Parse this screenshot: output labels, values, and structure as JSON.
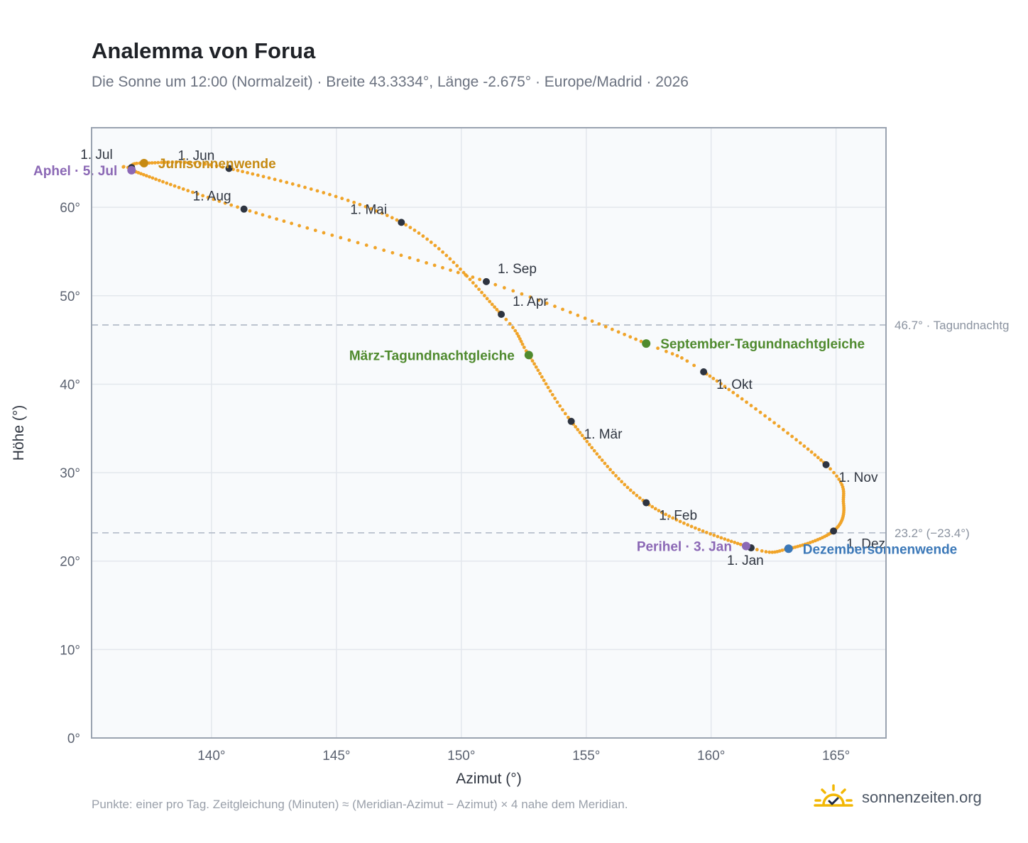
{
  "header": {
    "title": "Analemma von Forua",
    "subtitle": "Die Sonne um 12:00 (Normalzeit) · Breite 43.3334°, Länge -2.675° · Europe/Madrid · 2026"
  },
  "footer": {
    "note": "Punkte: einer pro Tag. Zeitgleichung (Minuten) ≈ (Meridian-Azimut − Azimut) × 4 nahe dem Meridian.",
    "brand": "sonnenzeiten.org",
    "brand_icon": "sun-check-icon"
  },
  "chart_data": {
    "type": "scatter",
    "title": "Analemma von Forua",
    "xlabel": "Azimut (°)",
    "ylabel": "Höhe (°)",
    "xlim": [
      135.2,
      167.0
    ],
    "ylim": [
      0,
      69
    ],
    "xticks": [
      140,
      145,
      150,
      155,
      160,
      165
    ],
    "xtick_labels": [
      "140°",
      "145°",
      "150°",
      "155°",
      "160°",
      "165°"
    ],
    "yticks": [
      0,
      10,
      20,
      30,
      40,
      50,
      60
    ],
    "ytick_labels": [
      "0°",
      "10°",
      "20°",
      "30°",
      "40°",
      "50°",
      "60°"
    ],
    "grid": true,
    "colors": {
      "curve": "#f0a429",
      "month_marker": "#2e3440",
      "solstice_june": "#c68a12",
      "solstice_december": "#3b78b8",
      "equinox": "#4f8a2e",
      "apsis": "#8b68b5",
      "reference_line": "#b8c0cc",
      "plot_background": "#f8fafc",
      "frame": "#9aa3b0"
    },
    "reference_lines": [
      {
        "y": 46.7,
        "label": "46.7° · Tagundnachtg"
      },
      {
        "y": 23.2,
        "label": "23.2° (−23.4°)"
      }
    ],
    "series": [
      {
        "points": [
          {
            "doy": 1,
            "az": 161.6,
            "alt": 21.5
          },
          {
            "doy": 32,
            "az": 157.4,
            "alt": 26.6
          },
          {
            "doy": 60,
            "az": 154.4,
            "alt": 35.8
          },
          {
            "doy": 79,
            "az": 152.7,
            "alt": 43.3
          },
          {
            "doy": 91,
            "az": 151.6,
            "alt": 47.9
          },
          {
            "doy": 121,
            "az": 147.6,
            "alt": 58.3
          },
          {
            "doy": 152,
            "az": 140.7,
            "alt": 64.4
          },
          {
            "doy": 172,
            "az": 137.3,
            "alt": 65.0
          },
          {
            "doy": 182,
            "az": 136.8,
            "alt": 64.5
          },
          {
            "doy": 186,
            "az": 136.8,
            "alt": 64.2
          },
          {
            "doy": 213,
            "az": 141.3,
            "alt": 59.8
          },
          {
            "doy": 244,
            "az": 151.0,
            "alt": 51.6
          },
          {
            "doy": 266,
            "az": 157.4,
            "alt": 44.6
          },
          {
            "doy": 274,
            "az": 159.7,
            "alt": 41.4
          },
          {
            "doy": 305,
            "az": 164.6,
            "alt": 30.9
          },
          {
            "doy": 320,
            "az": 165.3,
            "alt": 26.5
          },
          {
            "doy": 335,
            "az": 164.9,
            "alt": 23.4
          },
          {
            "doy": 355,
            "az": 163.1,
            "alt": 21.4
          },
          {
            "doy": 365,
            "az": 161.6,
            "alt": 21.5
          }
        ]
      }
    ],
    "month_markers": [
      {
        "label": "1. Jan",
        "az": 161.6,
        "alt": 21.5,
        "pos": "below"
      },
      {
        "label": "1. Feb",
        "az": 157.4,
        "alt": 26.6,
        "pos": "right-below"
      },
      {
        "label": "1. Mär",
        "az": 154.4,
        "alt": 35.8,
        "pos": "right-below"
      },
      {
        "label": "1. Apr",
        "az": 151.6,
        "alt": 47.9,
        "pos": "right-above"
      },
      {
        "label": "1. Mai",
        "az": 147.6,
        "alt": 58.3,
        "pos": "left-above"
      },
      {
        "label": "1. Jun",
        "az": 140.7,
        "alt": 64.4,
        "pos": "left-above"
      },
      {
        "label": "1. Jul",
        "az": 136.8,
        "alt": 64.5,
        "pos": "left-above"
      },
      {
        "label": "1. Aug",
        "az": 141.3,
        "alt": 59.8,
        "pos": "left-above"
      },
      {
        "label": "1. Sep",
        "az": 151.0,
        "alt": 51.6,
        "pos": "right-above"
      },
      {
        "label": "1. Okt",
        "az": 159.7,
        "alt": 41.4,
        "pos": "right-below"
      },
      {
        "label": "1. Nov",
        "az": 164.6,
        "alt": 30.9,
        "pos": "right-below"
      },
      {
        "label": "1. Dez",
        "az": 164.9,
        "alt": 23.4,
        "pos": "right-below"
      }
    ],
    "special_points": [
      {
        "label": "Junisonnenwende",
        "az": 137.3,
        "alt": 65.0,
        "kind": "solstice_june",
        "pos": "right"
      },
      {
        "label": "Dezembersonnenwende",
        "az": 163.1,
        "alt": 21.4,
        "kind": "solstice_december",
        "pos": "right"
      },
      {
        "label": "März-Tagundnachtgleiche",
        "az": 152.7,
        "alt": 43.3,
        "kind": "equinox",
        "pos": "left"
      },
      {
        "label": "September-Tagundnachtgleiche",
        "az": 157.4,
        "alt": 44.6,
        "kind": "equinox",
        "pos": "right"
      },
      {
        "label": "Aphel · 5. Jul",
        "az": 136.8,
        "alt": 64.2,
        "kind": "apsis",
        "pos": "left"
      },
      {
        "label": "Perihel · 3. Jan",
        "az": 161.4,
        "alt": 21.7,
        "kind": "apsis",
        "pos": "left"
      }
    ]
  }
}
